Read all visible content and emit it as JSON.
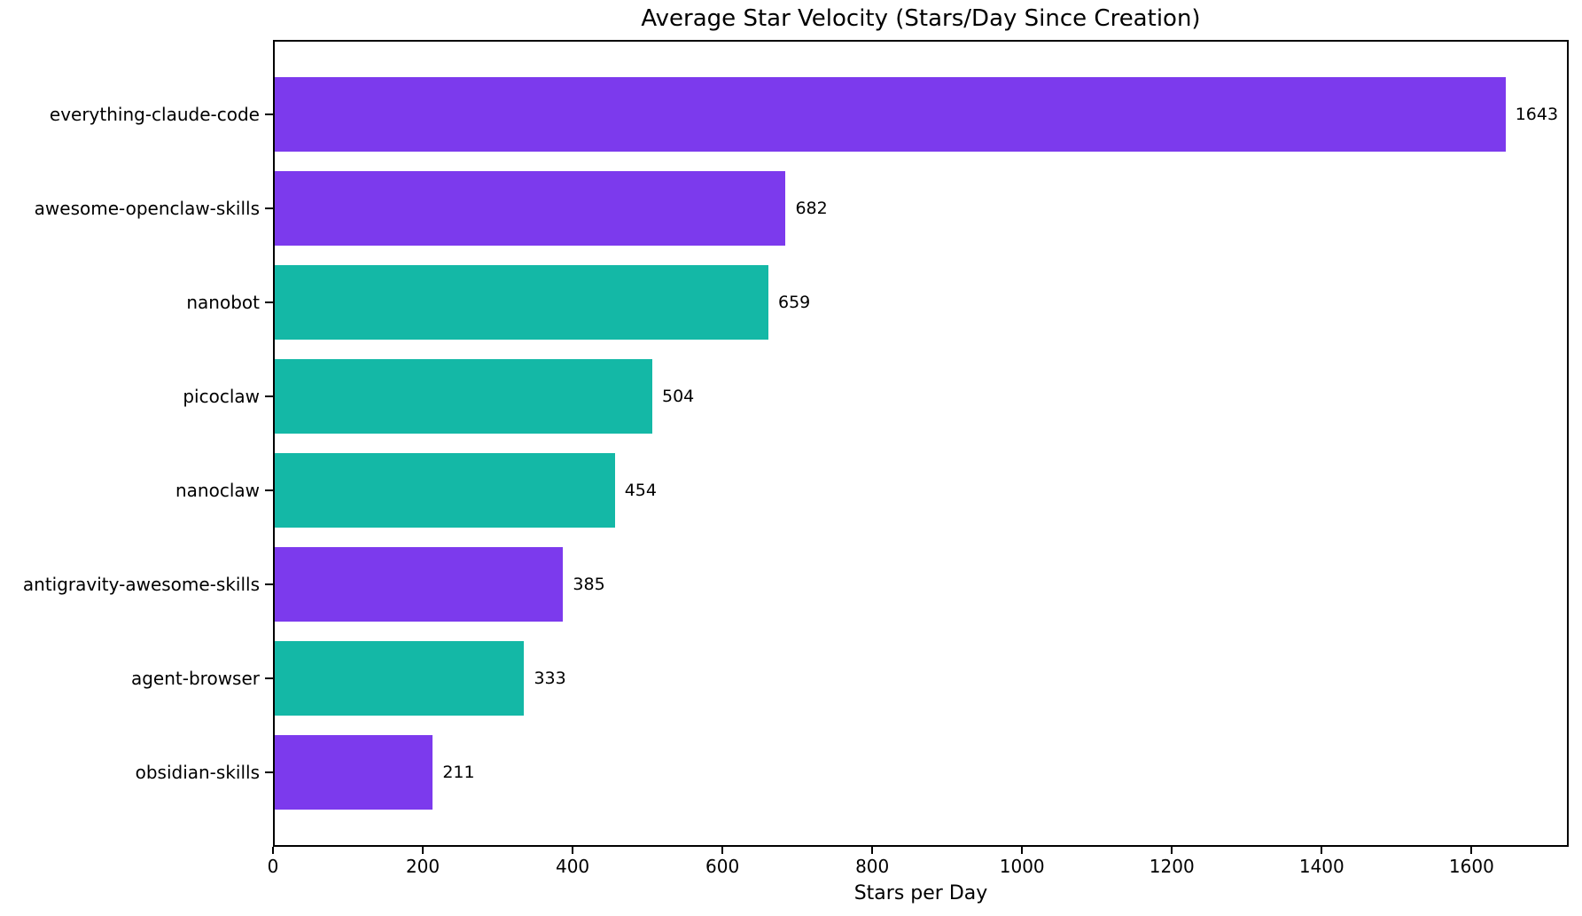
{
  "chart_data": {
    "type": "bar",
    "orientation": "horizontal",
    "title": "Average Star Velocity (Stars/Day Since Creation)",
    "xlabel": "Stars per Day",
    "ylabel": "",
    "categories": [
      "everything-claude-code",
      "awesome-openclaw-skills",
      "nanobot",
      "picoclaw",
      "nanoclaw",
      "antigravity-awesome-skills",
      "agent-browser",
      "obsidian-skills"
    ],
    "values": [
      1643,
      682,
      659,
      504,
      454,
      385,
      333,
      211
    ],
    "value_labels": [
      "1643",
      "682",
      "659",
      "504",
      "454",
      "385",
      "333",
      "211"
    ],
    "bar_colors": [
      "#7C3AED",
      "#7C3AED",
      "#14B8A6",
      "#14B8A6",
      "#14B8A6",
      "#7C3AED",
      "#14B8A6",
      "#7C3AED"
    ],
    "x_ticks": [
      0,
      200,
      400,
      600,
      800,
      1000,
      1200,
      1400,
      1600
    ],
    "xlim": [
      0,
      1725
    ],
    "grid": false,
    "legend": null,
    "background_color": "#FFFFFF",
    "text_color": "#000000",
    "spine_color": "#000000"
  }
}
